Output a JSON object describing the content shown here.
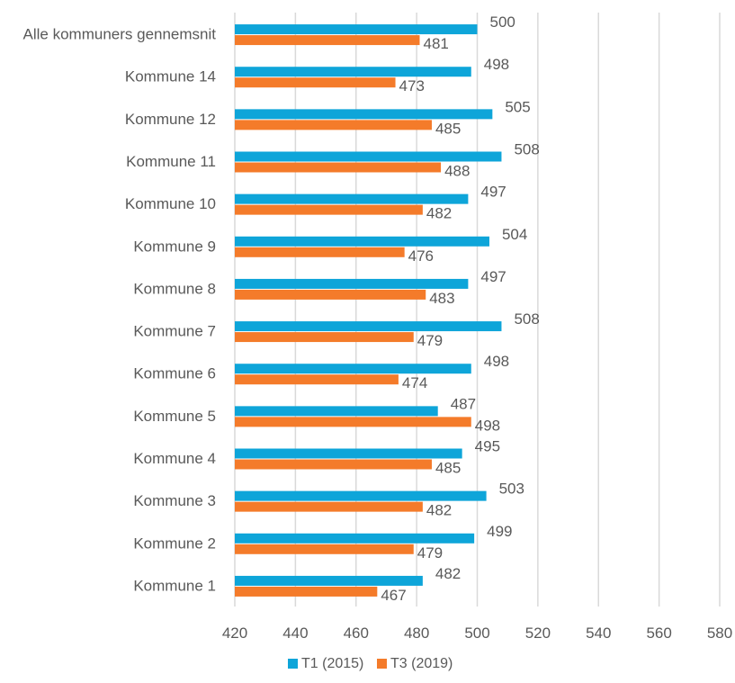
{
  "chart_data": {
    "type": "bar",
    "orientation": "horizontal",
    "categories": [
      "Alle kommuners gennemsnit",
      "Kommune 14",
      "Kommune 12",
      "Kommune 11",
      "Kommune 10",
      "Kommune 9",
      "Kommune 8",
      "Kommune 7",
      "Kommune 6",
      "Kommune 5",
      "Kommune 4",
      "Kommune 3",
      "Kommune 2",
      "Kommune 1"
    ],
    "series": [
      {
        "name": "T1 (2015)",
        "color": "#0EA5D9",
        "values": [
          500,
          498,
          505,
          508,
          497,
          504,
          497,
          508,
          498,
          487,
          495,
          503,
          499,
          482
        ]
      },
      {
        "name": "T3 (2019)",
        "color": "#F47B2A",
        "values": [
          481,
          473,
          485,
          488,
          482,
          476,
          483,
          479,
          474,
          498,
          485,
          482,
          479,
          467
        ]
      }
    ],
    "xlim": [
      420,
      580
    ],
    "xticks": [
      420,
      440,
      460,
      480,
      500,
      520,
      540,
      560,
      580
    ],
    "gridlines": "vertical",
    "legend_position": "bottom",
    "data_labels": true,
    "title": "",
    "xlabel": "",
    "ylabel": ""
  }
}
